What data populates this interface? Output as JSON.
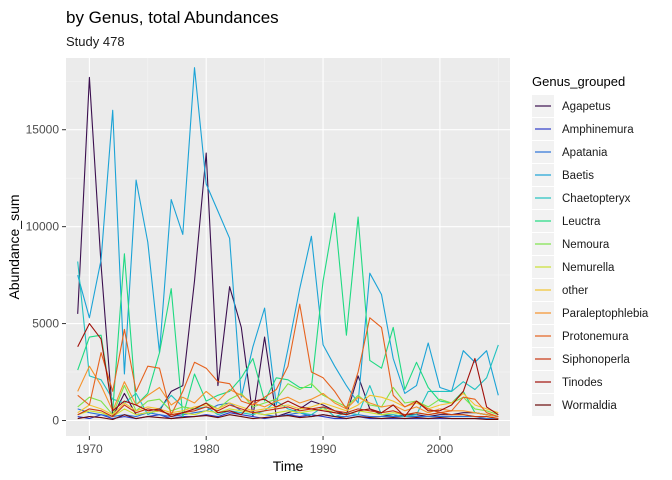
{
  "chart_data": {
    "type": "line",
    "title": "by Genus, total Abundances",
    "subtitle": "Study 478",
    "xlabel": "Time",
    "ylabel": "Abundance_sum",
    "xlim": [
      1968,
      2006
    ],
    "ylim": [
      -800,
      18700
    ],
    "x_ticks": [
      1970,
      1980,
      1990,
      2000
    ],
    "y_ticks": [
      0,
      5000,
      10000,
      15000
    ],
    "y_tick_labels": [
      "0",
      "5000",
      "10000",
      "15000"
    ],
    "grid": true,
    "legend_title": "Genus_grouped",
    "legend_position": "right",
    "x": [
      1969,
      1970,
      1971,
      1972,
      1973,
      1974,
      1975,
      1976,
      1977,
      1978,
      1979,
      1980,
      1981,
      1982,
      1983,
      1984,
      1985,
      1986,
      1987,
      1988,
      1989,
      1990,
      1991,
      1992,
      1993,
      1994,
      1995,
      1996,
      1997,
      1998,
      1999,
      2000,
      2001,
      2002,
      2003,
      2004,
      2005
    ],
    "series": [
      {
        "name": "Agapetus",
        "color": "#3b0f4f",
        "values": [
          5500,
          17700,
          8000,
          200,
          1400,
          300,
          400,
          500,
          1500,
          1800,
          7200,
          13800,
          1800,
          6900,
          4800,
          200,
          4300,
          200,
          400,
          600,
          1000,
          800,
          500,
          300,
          2300,
          600,
          300,
          200,
          300,
          300,
          200,
          300,
          300,
          400,
          400,
          300,
          200
        ]
      },
      {
        "name": "Amphinemura",
        "color": "#2d3bc9",
        "values": [
          200,
          100,
          300,
          100,
          200,
          100,
          200,
          300,
          100,
          200,
          200,
          300,
          200,
          400,
          300,
          200,
          100,
          200,
          300,
          200,
          300,
          200,
          100,
          100,
          200,
          100,
          100,
          100,
          100,
          100,
          100,
          100,
          100,
          100,
          100,
          100,
          100
        ]
      },
      {
        "name": "Apatania",
        "color": "#2a72d8",
        "values": [
          600,
          400,
          300,
          200,
          300,
          200,
          400,
          300,
          200,
          300,
          400,
          500,
          800,
          900,
          500,
          400,
          300,
          200,
          300,
          400,
          200,
          300,
          200,
          200,
          300,
          200,
          200,
          200,
          200,
          200,
          200,
          200,
          200,
          200,
          200,
          100,
          100
        ]
      },
      {
        "name": "Baetis",
        "color": "#1ba3d6",
        "values": [
          7500,
          5300,
          8300,
          16000,
          2400,
          12400,
          9200,
          3500,
          11400,
          9600,
          18200,
          12200,
          10800,
          9400,
          1200,
          3800,
          5800,
          800,
          3700,
          6800,
          9500,
          3900,
          2800,
          1800,
          900,
          7600,
          6500,
          3200,
          1400,
          1800,
          4000,
          1700,
          1500,
          3600,
          3000,
          3600,
          1300
        ]
      },
      {
        "name": "Chaetopteryx",
        "color": "#21c2c0",
        "values": [
          8200,
          2300,
          2100,
          1100,
          900,
          1400,
          300,
          600,
          1300,
          700,
          600,
          700,
          300,
          500,
          400,
          300,
          500,
          1000,
          600,
          400,
          300,
          700,
          200,
          400,
          300,
          1800,
          300,
          300,
          200,
          300,
          1500,
          1500,
          1500,
          2000,
          1600,
          2200,
          3900
        ]
      },
      {
        "name": "Leuctra",
        "color": "#1fda82",
        "values": [
          2600,
          4300,
          4400,
          500,
          8600,
          800,
          1400,
          3500,
          6800,
          200,
          2400,
          1000,
          1300,
          1500,
          2200,
          3200,
          1000,
          2200,
          2100,
          1700,
          1700,
          7200,
          10700,
          4400,
          10500,
          3100,
          2700,
          4800,
          1600,
          3000,
          1700,
          1000,
          900,
          1500,
          400,
          300,
          200
        ]
      },
      {
        "name": "Nemoura",
        "color": "#7fe34a",
        "values": [
          700,
          1200,
          1000,
          300,
          1800,
          500,
          1000,
          1100,
          500,
          700,
          600,
          900,
          600,
          1100,
          1400,
          700,
          900,
          1100,
          1900,
          1600,
          1900,
          1300,
          1000,
          700,
          1300,
          800,
          700,
          1700,
          900,
          1000,
          700,
          1100,
          900,
          1200,
          600,
          500,
          300
        ]
      },
      {
        "name": "Nemurella",
        "color": "#cbe032",
        "values": [
          300,
          500,
          400,
          200,
          600,
          300,
          400,
          500,
          300,
          400,
          300,
          500,
          400,
          600,
          500,
          400,
          300,
          400,
          500,
          400,
          500,
          600,
          400,
          300,
          500,
          400,
          300,
          400,
          300,
          400,
          300,
          400,
          300,
          300,
          200,
          200,
          100
        ]
      },
      {
        "name": "other",
        "color": "#f3c42f",
        "values": [
          400,
          800,
          600,
          300,
          900,
          500,
          700,
          600,
          400,
          500,
          700,
          800,
          600,
          900,
          700,
          500,
          600,
          700,
          800,
          600,
          700,
          900,
          700,
          500,
          800,
          1300,
          1200,
          1000,
          700,
          900,
          600,
          800,
          900,
          1400,
          800,
          600,
          400
        ]
      },
      {
        "name": "Paraleptophlebia",
        "color": "#f5922b",
        "values": [
          1500,
          2800,
          1800,
          500,
          2000,
          800,
          1300,
          1700,
          800,
          1200,
          900,
          1500,
          1000,
          1600,
          1300,
          900,
          700,
          1000,
          1200,
          900,
          1100,
          1400,
          900,
          600,
          1200,
          900,
          700,
          800,
          500,
          700,
          400,
          600,
          500,
          500,
          400,
          300,
          200
        ]
      },
      {
        "name": "Protonemura",
        "color": "#e6621e",
        "values": [
          1300,
          800,
          3500,
          1500,
          4700,
          1500,
          2800,
          2700,
          300,
          1500,
          3000,
          2700,
          2000,
          1900,
          1000,
          800,
          1200,
          1600,
          2800,
          6000,
          2500,
          2200,
          1500,
          600,
          2500,
          5300,
          4800,
          1300,
          700,
          1000,
          600,
          400,
          500,
          1200,
          1100,
          400,
          200
        ]
      },
      {
        "name": "Siphonoperla",
        "color": "#c93410",
        "values": [
          300,
          600,
          500,
          200,
          800,
          400,
          600,
          500,
          300,
          400,
          500,
          700,
          500,
          800,
          600,
          400,
          500,
          600,
          700,
          500,
          600,
          700,
          500,
          400,
          600,
          500,
          400,
          500,
          300,
          400,
          300,
          400,
          300,
          300,
          200,
          200,
          100
        ]
      },
      {
        "name": "Tinodes",
        "color": "#a1100a",
        "values": [
          3800,
          5000,
          4200,
          500,
          1000,
          800,
          500,
          600,
          200,
          400,
          600,
          900,
          400,
          500,
          300,
          1000,
          1100,
          700,
          1000,
          700,
          600,
          500,
          400,
          300,
          500,
          600,
          400,
          800,
          200,
          1000,
          500,
          500,
          800,
          1500,
          3200,
          700,
          300
        ]
      },
      {
        "name": "Wormaldia",
        "color": "#6b0a0a",
        "values": [
          100,
          200,
          150,
          50,
          300,
          100,
          200,
          150,
          100,
          150,
          200,
          250,
          150,
          300,
          200,
          100,
          150,
          200,
          250,
          150,
          200,
          300,
          200,
          100,
          200,
          150,
          100,
          150,
          100,
          150,
          100,
          150,
          100,
          100,
          100,
          50,
          50
        ]
      }
    ]
  }
}
